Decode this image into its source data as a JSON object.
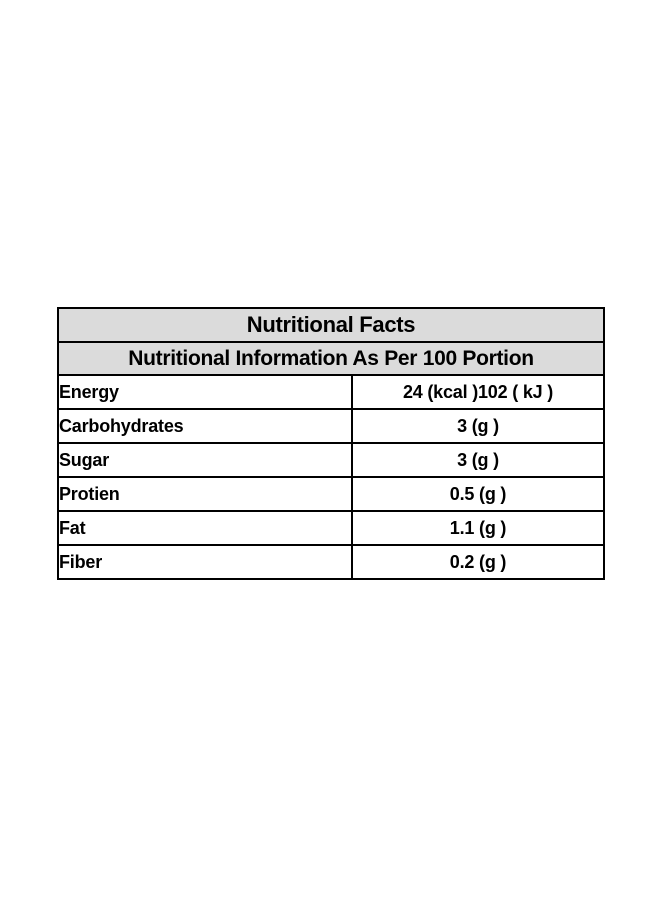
{
  "table": {
    "title": "Nutritional Facts",
    "subtitle": "Nutritional Information As Per 100 Portion",
    "rows": [
      {
        "label": "Energy",
        "value": "24 (kcal )102 ( kJ )"
      },
      {
        "label": "Carbohydrates",
        "value": "3 (g )"
      },
      {
        "label": "Sugar",
        "value": "3 (g )"
      },
      {
        "label": "Protien",
        "value": "0.5 (g )"
      },
      {
        "label": "Fat",
        "value": "1.1 (g )"
      },
      {
        "label": "Fiber",
        "value": "0.2 (g )"
      }
    ],
    "colors": {
      "header_bg": "#dbdbdb",
      "border": "#000000",
      "text": "#000000",
      "page_bg": "#ffffff"
    }
  }
}
